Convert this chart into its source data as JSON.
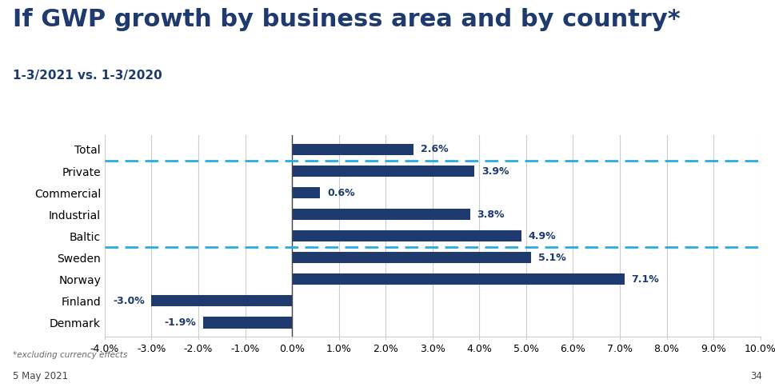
{
  "title": "If GWP growth by business area and by country*",
  "subtitle": "1-3/2021 vs. 1-3/2020",
  "categories": [
    "Total",
    "Private",
    "Commercial",
    "Industrial",
    "Baltic",
    "Sweden",
    "Norway",
    "Finland",
    "Denmark"
  ],
  "values": [
    2.6,
    3.9,
    0.6,
    3.8,
    4.9,
    5.1,
    7.1,
    -3.0,
    -1.9
  ],
  "bar_color": "#1e3a6e",
  "dashed_line_after_indices": [
    0,
    4
  ],
  "dashed_line_color": "#29abe2",
  "xlim": [
    -4.0,
    10.0
  ],
  "xticks": [
    -4.0,
    -3.0,
    -2.0,
    -1.0,
    0.0,
    1.0,
    2.0,
    3.0,
    4.0,
    5.0,
    6.0,
    7.0,
    8.0,
    9.0,
    10.0
  ],
  "xtick_labels": [
    "-4.0%",
    "-3.0%",
    "-2.0%",
    "-1.0%",
    "0.0%",
    "1.0%",
    "2.0%",
    "3.0%",
    "4.0%",
    "5.0%",
    "6.0%",
    "7.0%",
    "8.0%",
    "9.0%",
    "10.0%"
  ],
  "footer_left": "*excluding currency effects",
  "footer_date": "5 May 2021",
  "footer_page": "34",
  "title_color": "#1e3a6e",
  "subtitle_color": "#1e3a6e",
  "background_color": "#ffffff",
  "grid_color": "#cccccc",
  "title_fontsize": 22,
  "subtitle_fontsize": 11,
  "ytick_fontsize": 10,
  "xtick_fontsize": 9,
  "value_fontsize": 9
}
